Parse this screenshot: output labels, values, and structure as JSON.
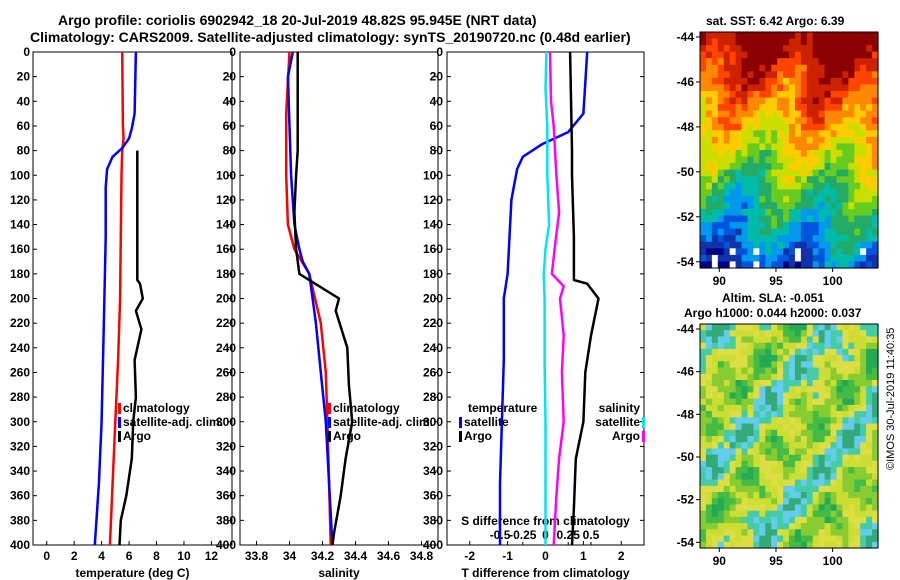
{
  "header": {
    "title_line1": "Argo profile: coriolis 6902942_18 20-Jul-2019 48.82S 95.945E (NRT data)",
    "title_line2": "Climatology: CARS2009. Satellite-adjusted climatology: synTS_20190720.nc (0.48d earlier)"
  },
  "colors": {
    "climatology": "#ff0000",
    "satellite": "#0000ff",
    "argo": "#000000",
    "salinity_sat": "#00e5ee",
    "salinity_clim": "#ff00ff"
  },
  "depth_ticks": [
    0,
    20,
    40,
    60,
    80,
    100,
    120,
    140,
    160,
    180,
    200,
    220,
    240,
    260,
    280,
    300,
    320,
    340,
    360,
    380,
    400
  ],
  "chart_data": [
    {
      "type": "line",
      "id": "temperature",
      "xlabel": "temperature (deg C)",
      "ylabel": "depth",
      "xlim": [
        -1,
        13.5
      ],
      "ylim": [
        0,
        400
      ],
      "xticks": [
        0,
        2,
        4,
        6,
        8,
        10,
        12
      ],
      "legend": [
        "climatology",
        "satellite-adj. clim.",
        "Argo"
      ],
      "series": [
        {
          "name": "climatology",
          "depth": [
            0,
            60,
            70,
            80,
            100,
            150,
            200,
            250,
            300,
            350,
            400
          ],
          "values": [
            5.5,
            5.55,
            5.6,
            5.5,
            5.45,
            5.4,
            5.35,
            5.2,
            5.0,
            4.8,
            4.6
          ]
        },
        {
          "name": "satellite-adj. clim.",
          "depth": [
            0,
            50,
            62,
            70,
            78,
            85,
            95,
            110,
            150,
            200,
            250,
            300,
            350,
            400
          ],
          "values": [
            6.5,
            6.4,
            6.2,
            6.0,
            5.5,
            4.8,
            4.4,
            4.3,
            4.3,
            4.2,
            4.1,
            4.0,
            3.8,
            3.5
          ]
        },
        {
          "name": "Argo",
          "depth": [
            80,
            100,
            150,
            185,
            188,
            200,
            210,
            225,
            250,
            280,
            300,
            330,
            360,
            380,
            400
          ],
          "values": [
            6.6,
            6.6,
            6.6,
            6.6,
            6.8,
            7.0,
            6.5,
            6.9,
            6.4,
            6.5,
            6.3,
            6.2,
            5.8,
            5.4,
            5.3
          ]
        }
      ]
    },
    {
      "type": "line",
      "id": "salinity",
      "xlabel": "salinity",
      "ylabel": "depth",
      "xlim": [
        33.7,
        34.9
      ],
      "ylim": [
        0,
        400
      ],
      "xticks": [
        33.8,
        34.0,
        34.2,
        34.4,
        34.6,
        34.8
      ],
      "xtick_labels": [
        "33.8",
        "34",
        "34.2",
        "34.4",
        "34.6",
        "34.8"
      ],
      "legend": [
        "climatology",
        "satellite-adj. clim.",
        "Argo"
      ],
      "series": [
        {
          "name": "climatology",
          "depth": [
            0,
            50,
            100,
            140,
            160,
            180,
            220,
            260,
            300,
            350,
            400
          ],
          "values": [
            34.0,
            33.98,
            33.98,
            33.99,
            34.03,
            34.12,
            34.19,
            34.22,
            34.23,
            34.24,
            34.25
          ]
        },
        {
          "name": "satellite-adj. clim.",
          "depth": [
            0,
            20,
            60,
            100,
            140,
            160,
            170,
            180,
            220,
            260,
            300,
            350,
            400
          ],
          "values": [
            34.02,
            33.99,
            34.0,
            34.01,
            34.03,
            34.06,
            34.08,
            34.12,
            34.16,
            34.19,
            34.22,
            34.24,
            34.26
          ]
        },
        {
          "name": "Argo",
          "depth": [
            0,
            80,
            100,
            130,
            160,
            180,
            200,
            210,
            240,
            270,
            300,
            330,
            360,
            390,
            400
          ],
          "values": [
            34.05,
            34.05,
            34.04,
            34.03,
            34.04,
            34.06,
            34.3,
            34.28,
            34.35,
            34.36,
            34.38,
            34.34,
            34.31,
            34.27,
            34.26
          ]
        }
      ]
    },
    {
      "type": "line",
      "id": "difference",
      "xlabel": "T difference from climatology",
      "xlabel2": "S difference from climatology",
      "ylabel": "depth",
      "xlim": [
        -2.6,
        2.6
      ],
      "ylim": [
        0,
        400
      ],
      "xticks": [
        -2,
        -1,
        0,
        1,
        2
      ],
      "xticks2": [
        -0.5,
        -0.25,
        0,
        0.25,
        0.5
      ],
      "xtick2_labels": [
        "-0.5",
        "-0.25",
        "0",
        "0.25",
        "0.5"
      ],
      "legend_left_title": "temperature",
      "legend_right_title": "salinity",
      "legend_left": [
        "satellite",
        "Argo"
      ],
      "legend_right": [
        "satellite",
        "Argo"
      ],
      "series": [
        {
          "name": "T satellite",
          "depth": [
            0,
            50,
            65,
            75,
            85,
            95,
            120,
            150,
            180,
            200,
            250,
            300,
            350,
            400
          ],
          "values": [
            1.1,
            1.0,
            0.6,
            -0.1,
            -0.6,
            -0.75,
            -0.9,
            -0.95,
            -1.0,
            -1.1,
            -1.1,
            -1.15,
            -1.2,
            -1.2
          ]
        },
        {
          "name": "T Argo",
          "depth": [
            0,
            80,
            100,
            150,
            185,
            188,
            200,
            230,
            260,
            300,
            330,
            370,
            400
          ],
          "values": [
            0.65,
            0.7,
            0.7,
            0.75,
            0.75,
            1.1,
            1.4,
            1.2,
            1.05,
            1.0,
            0.8,
            0.75,
            0.7
          ]
        },
        {
          "name": "S satellite",
          "depth": [
            0,
            30,
            60,
            100,
            140,
            160,
            180,
            200,
            250,
            300,
            350,
            400
          ],
          "values": [
            0.01,
            0.0,
            0.02,
            0.02,
            0.04,
            0.0,
            -0.02,
            -0.01,
            -0.01,
            0.0,
            0.0,
            0.0
          ]
        },
        {
          "name": "S Argo",
          "depth": [
            0,
            40,
            60,
            100,
            130,
            160,
            180,
            190,
            200,
            230,
            260,
            300,
            330,
            360,
            400
          ],
          "values": [
            0.05,
            0.06,
            0.09,
            0.12,
            0.15,
            0.1,
            0.07,
            0.2,
            0.16,
            0.2,
            0.18,
            0.2,
            0.15,
            0.12,
            0.09
          ]
        }
      ]
    },
    {
      "type": "heatmap",
      "id": "sst_map",
      "title": "sat. SST: 6.42 Argo: 6.39",
      "xticks": [
        90,
        95,
        100
      ],
      "yticks": [
        -44,
        -46,
        -48,
        -50,
        -52,
        -54
      ]
    },
    {
      "type": "heatmap",
      "id": "sla_map",
      "title": "Altim. SLA: -0.051",
      "subtitle": "Argo h1000: 0.044 h2000: 0.037",
      "xticks": [
        90,
        95,
        100
      ],
      "yticks": [
        -44,
        -46,
        -48,
        -50,
        -52,
        -54
      ]
    }
  ],
  "credit": "©IMOS 30-Jul-2019 11:40:35"
}
